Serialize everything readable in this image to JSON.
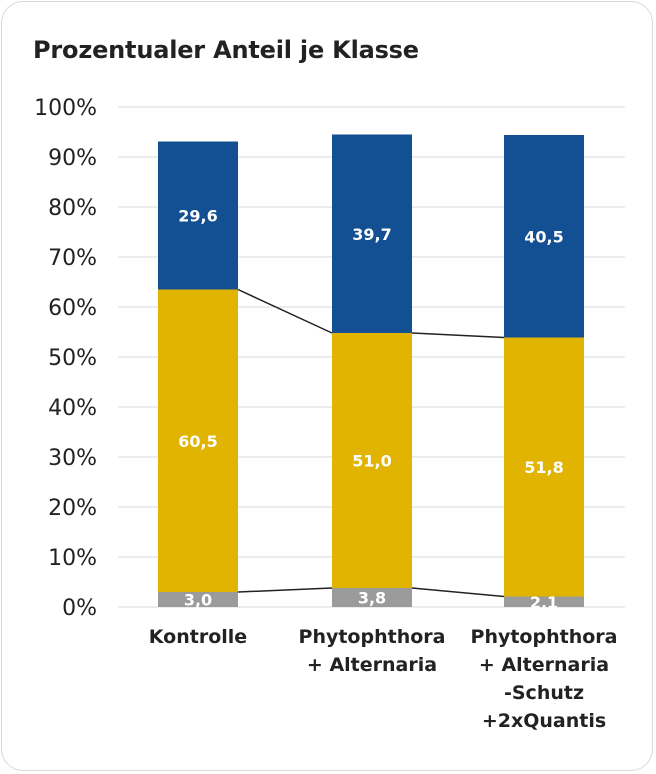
{
  "chart_data": {
    "type": "bar",
    "stacked": true,
    "title": "Prozentualer Anteil je Klasse",
    "categories": [
      [
        "Kontrolle"
      ],
      [
        "Phytophthora",
        "+ Alternaria"
      ],
      [
        "Phytophthora",
        "+ Alternaria",
        "-Schutz",
        "+2xQuantis"
      ]
    ],
    "series": [
      {
        "values": [
          3.0,
          3.8,
          2.1
        ],
        "labels": [
          "3,0",
          "3,8",
          "2,1"
        ],
        "color": "#9b9b9b"
      },
      {
        "values": [
          60.5,
          51.0,
          51.8
        ],
        "labels": [
          "60,5",
          "51,0",
          "51,8"
        ],
        "color": "#e0b400"
      },
      {
        "values": [
          29.6,
          39.7,
          40.5
        ],
        "labels": [
          "29,6",
          "39,7",
          "40,5"
        ],
        "color": "#124f93"
      }
    ],
    "ylim": [
      0,
      100
    ],
    "yticks": [
      "0%",
      "10%",
      "20%",
      "30%",
      "40%",
      "50%",
      "60%",
      "70%",
      "80%",
      "90%",
      "100%"
    ],
    "grid": true,
    "series_lines": true,
    "series_line_color": "#222222"
  }
}
